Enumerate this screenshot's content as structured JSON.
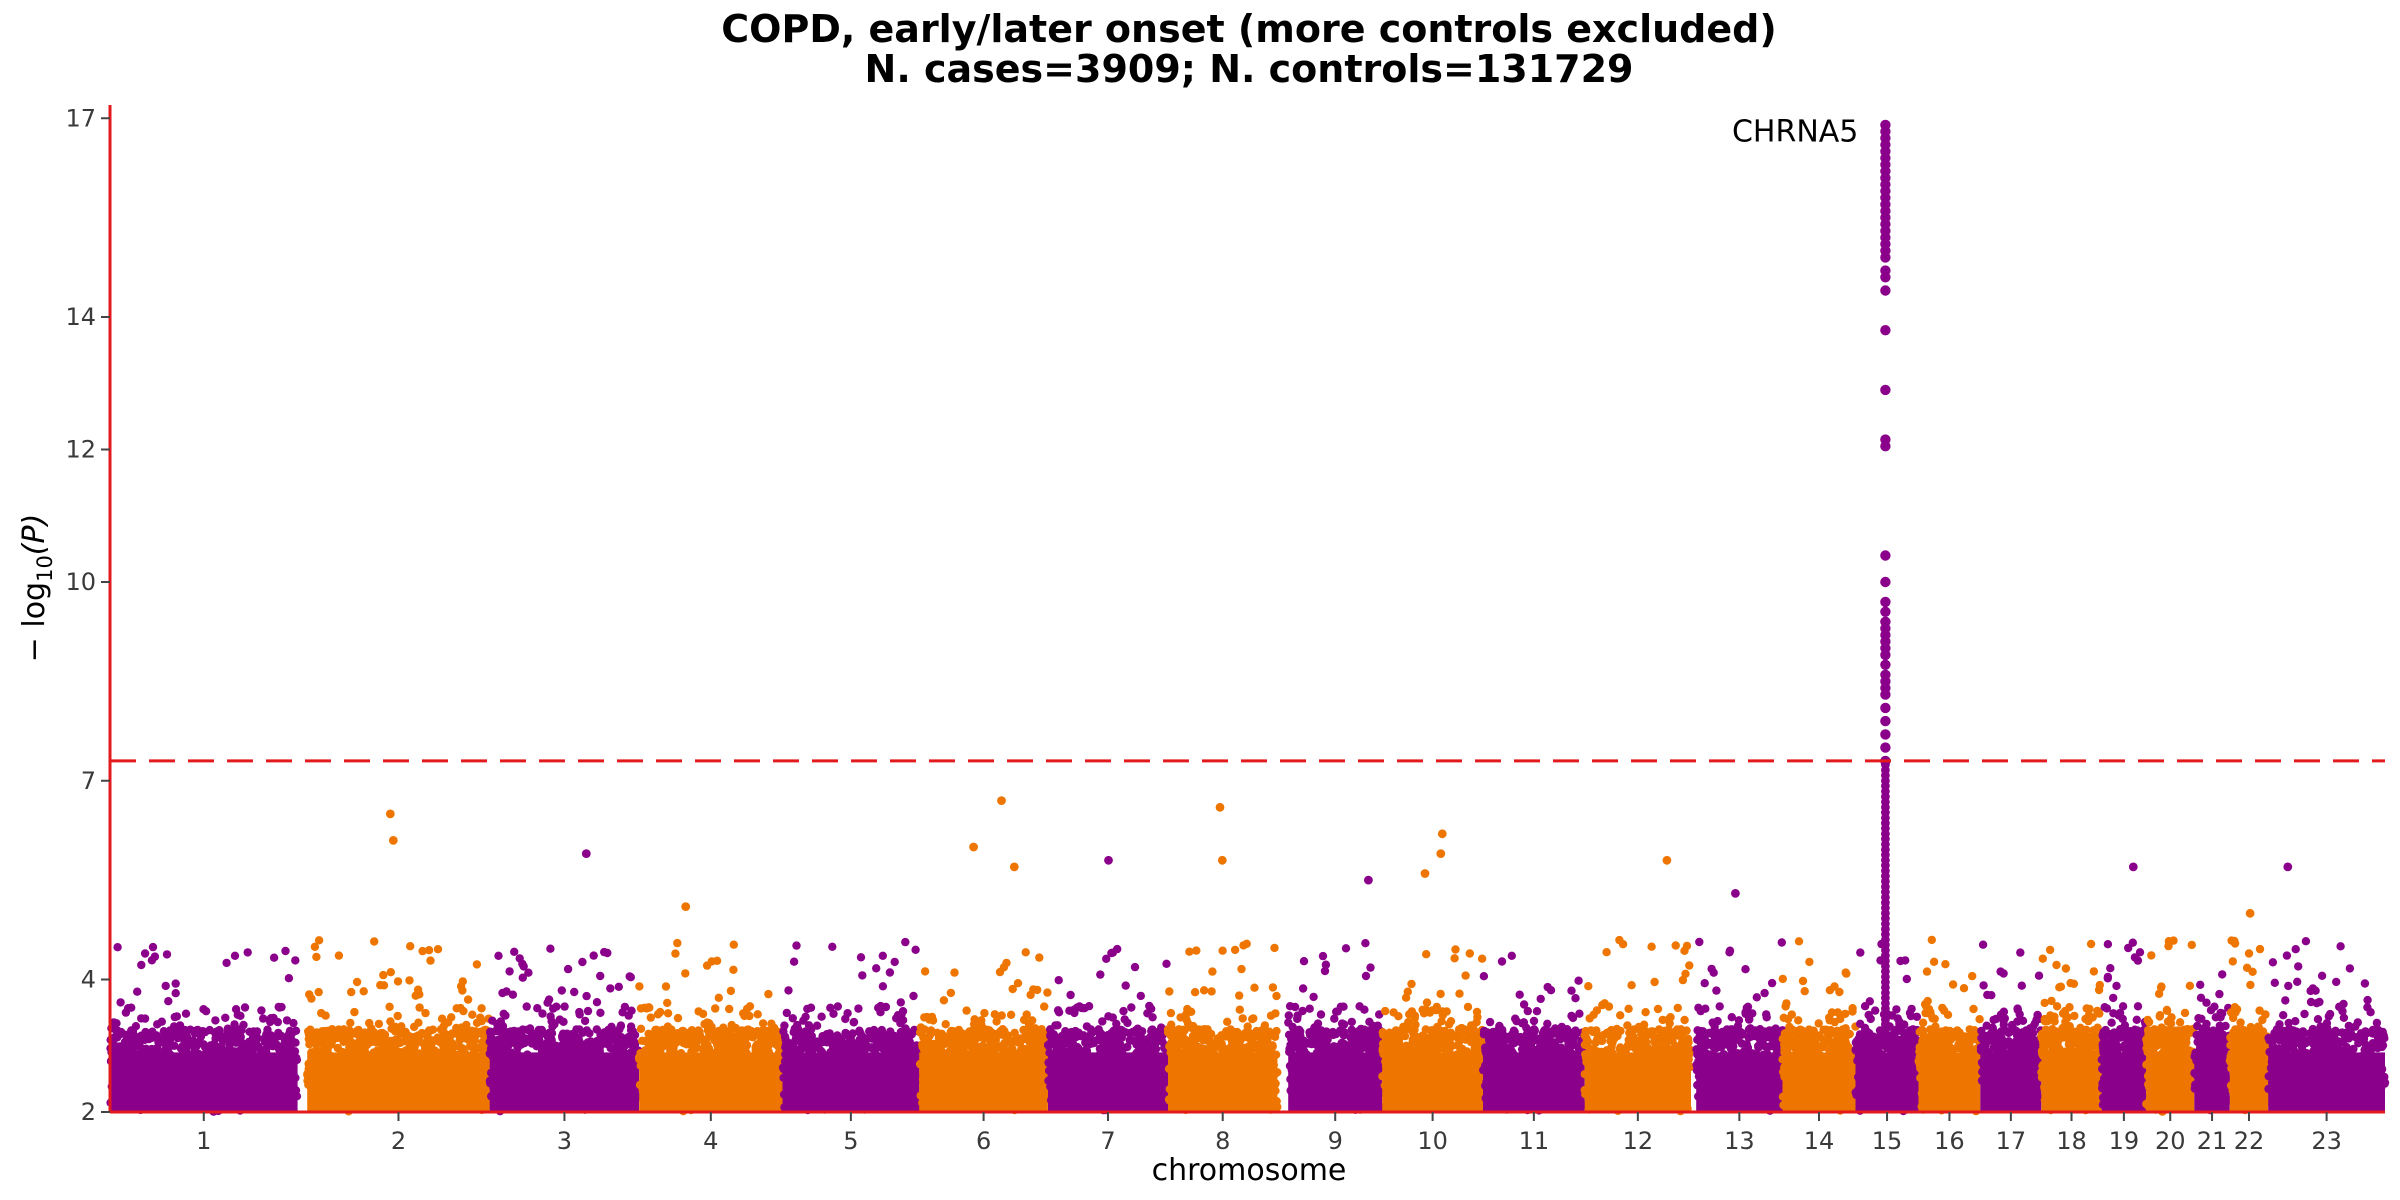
{
  "chart_data": {
    "type": "scatter",
    "title": "COPD, early/later onset (more controls excluded)",
    "subtitle": "N. cases=3909; N. controls=131729",
    "xlabel": "chromosome",
    "ylabel_main": "− log",
    "ylabel_sub": "10",
    "ylabel_tail": "(P)",
    "ylim": [
      2,
      17.2
    ],
    "y_ticks": [
      2,
      4,
      7,
      10,
      12,
      14,
      17
    ],
    "significance_threshold": 7.3,
    "grid": false,
    "colors": {
      "odd": "#8B008B",
      "even": "#EE7600",
      "axis": "#E31A1C",
      "threshold": "#E31A1C"
    },
    "chromosomes": [
      {
        "label": "1",
        "start": 0,
        "end": 248.9,
        "max": 4.5
      },
      {
        "label": "2",
        "start": 261.7,
        "end": 503.9,
        "max": 6.5
      },
      {
        "label": "3",
        "start": 503.9,
        "end": 702.2,
        "max": 5.9
      },
      {
        "label": "4",
        "start": 702.2,
        "end": 892.4,
        "max": 5.1
      },
      {
        "label": "5",
        "start": 892.4,
        "end": 1073.9,
        "max": 4.9
      },
      {
        "label": "6",
        "start": 1073.9,
        "end": 1244.7,
        "max": 6.7
      },
      {
        "label": "7",
        "start": 1244.7,
        "end": 1404.0,
        "max": 5.8
      },
      {
        "label": "8",
        "start": 1404.0,
        "end": 1549.2,
        "max": 6.6
      },
      {
        "label": "9",
        "start": 1563.5,
        "end": 1688.3,
        "max": 5.5
      },
      {
        "label": "10",
        "start": 1688.3,
        "end": 1822.0,
        "max": 6.2
      },
      {
        "label": "11",
        "start": 1822.0,
        "end": 1957.0,
        "max": 4.4
      },
      {
        "label": "12",
        "start": 1957.0,
        "end": 2098.0,
        "max": 5.8
      },
      {
        "label": "13",
        "start": 2105.0,
        "end": 2219.4,
        "max": 5.3
      },
      {
        "label": "14",
        "start": 2219.4,
        "end": 2316.4,
        "max": 5.2
      },
      {
        "label": "15",
        "start": 2316.4,
        "end": 2400.0,
        "max": 16.9
      },
      {
        "label": "16",
        "start": 2400.0,
        "end": 2482.0,
        "max": 5.3
      },
      {
        "label": "17",
        "start": 2482.0,
        "end": 2563.0,
        "max": 5.2
      },
      {
        "label": "18",
        "start": 2563.0,
        "end": 2643.0,
        "max": 5.2
      },
      {
        "label": "19",
        "start": 2643.0,
        "end": 2702.0,
        "max": 5.7
      },
      {
        "label": "20",
        "start": 2702.0,
        "end": 2766.0,
        "max": 4.6
      },
      {
        "label": "21",
        "start": 2766.0,
        "end": 2813.0,
        "max": 4.1
      },
      {
        "label": "22",
        "start": 2813.0,
        "end": 2864.0,
        "max": 5.0
      },
      {
        "label": "23",
        "start": 2864.0,
        "end": 3019.0,
        "max": 5.7
      }
    ],
    "peaks": [
      {
        "chromosome": "2",
        "pos": 372,
        "y": 6.5
      },
      {
        "chromosome": "2",
        "pos": 376,
        "y": 6.1
      },
      {
        "chromosome": "3",
        "pos": 632,
        "y": 5.9
      },
      {
        "chromosome": "4",
        "pos": 764,
        "y": 5.1
      },
      {
        "chromosome": "6",
        "pos": 1146,
        "y": 6.0
      },
      {
        "chromosome": "6",
        "pos": 1183,
        "y": 6.7
      },
      {
        "chromosome": "6",
        "pos": 1200,
        "y": 5.7
      },
      {
        "chromosome": "7",
        "pos": 1325,
        "y": 5.8
      },
      {
        "chromosome": "8",
        "pos": 1473,
        "y": 6.6
      },
      {
        "chromosome": "8",
        "pos": 1476,
        "y": 5.8
      },
      {
        "chromosome": "9",
        "pos": 1670,
        "y": 5.5
      },
      {
        "chromosome": "10",
        "pos": 1768,
        "y": 6.2
      },
      {
        "chromosome": "10",
        "pos": 1766,
        "y": 5.9
      },
      {
        "chromosome": "10",
        "pos": 1745,
        "y": 5.6
      },
      {
        "chromosome": "12",
        "pos": 2066,
        "y": 5.8
      },
      {
        "chromosome": "13",
        "pos": 2157,
        "y": 5.3
      },
      {
        "chromosome": "19",
        "pos": 2685,
        "y": 5.7
      },
      {
        "chromosome": "22",
        "pos": 2840,
        "y": 5.0
      },
      {
        "chromosome": "23",
        "pos": 2890,
        "y": 5.7
      }
    ],
    "hit_locus": {
      "chromosome": "15",
      "pos": 2356,
      "values": [
        16.9,
        16.8,
        16.7,
        16.6,
        16.5,
        16.4,
        16.3,
        16.2,
        16.1,
        16.0,
        15.9,
        15.8,
        15.7,
        15.6,
        15.5,
        15.4,
        15.3,
        15.2,
        15.1,
        15.0,
        14.9,
        14.7,
        14.6,
        14.4,
        13.8,
        12.9,
        12.15,
        12.05,
        10.4,
        10.0,
        9.7,
        9.55,
        9.4,
        9.3,
        9.2,
        9.1,
        9.0,
        8.9,
        8.75,
        8.6,
        8.5,
        8.4,
        8.3,
        8.1,
        7.9,
        7.7,
        7.5,
        7.3
      ]
    },
    "annotations": [
      {
        "text": "CHRNA5",
        "chromosome": "15",
        "pos": 2356,
        "y": 16.8
      }
    ]
  }
}
